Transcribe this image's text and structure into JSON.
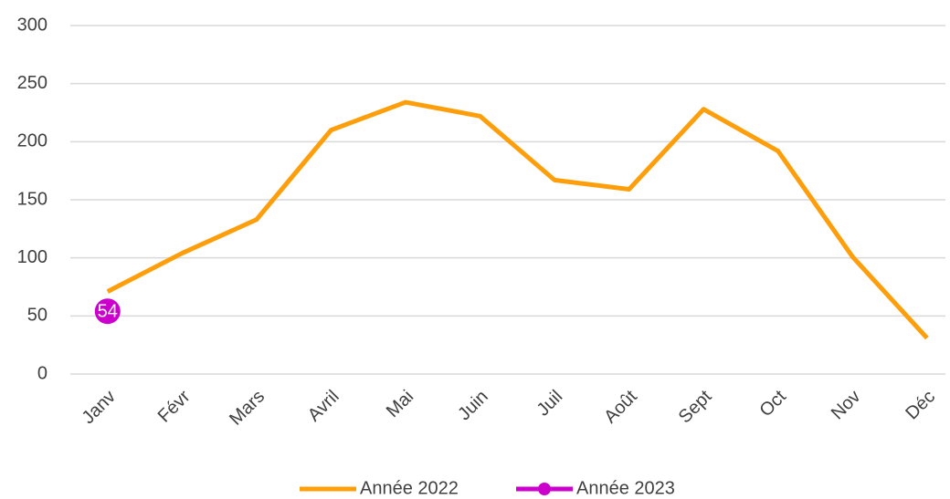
{
  "chart_data": {
    "type": "line",
    "categories": [
      "Janv",
      "Févr",
      "Mars",
      "Avril",
      "Mai",
      "Juin",
      "Juil",
      "Août",
      "Sept",
      "Oct",
      "Nov",
      "Déc"
    ],
    "series": [
      {
        "name": "Année 2022",
        "color": "#ff9e0b",
        "values": [
          71,
          104,
          133,
          210,
          234,
          222,
          167,
          159,
          228,
          192,
          101,
          31
        ]
      },
      {
        "name": "Année 2023",
        "color": "#cc00cc",
        "values": [
          54,
          null,
          null,
          null,
          null,
          null,
          null,
          null,
          null,
          null,
          null,
          null
        ]
      }
    ],
    "ylim": [
      0,
      300
    ],
    "yticks": [
      0,
      50,
      100,
      150,
      200,
      250,
      300
    ],
    "grid": true,
    "legend": "bottom"
  }
}
